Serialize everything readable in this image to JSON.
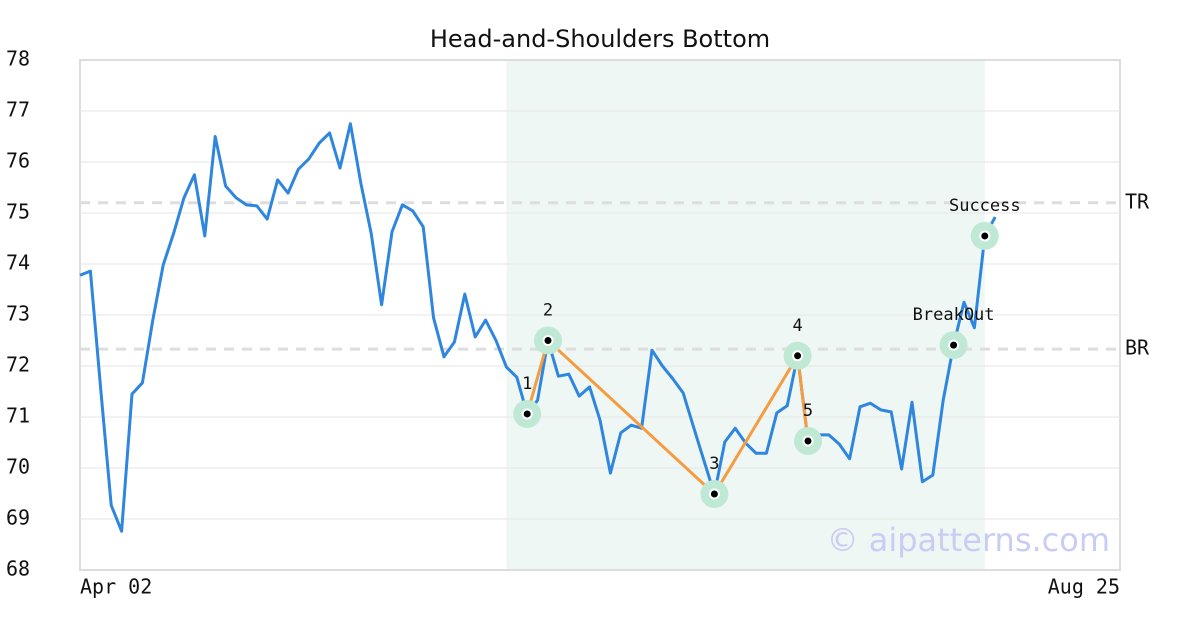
{
  "chart_data": {
    "type": "line",
    "title": "Head-and-Shoulders Bottom",
    "xlim": [
      0,
      100
    ],
    "xticks": [
      {
        "value": 0,
        "label": "Apr 02"
      },
      {
        "value": 100,
        "label": "Aug 25"
      }
    ],
    "ylim": [
      68,
      78
    ],
    "yticks": [
      68,
      69,
      70,
      71,
      72,
      73,
      74,
      75,
      76,
      77,
      78
    ],
    "grid": true,
    "highlight_range": [
      41,
      87
    ],
    "color": "#2e86de",
    "values": [
      73.78,
      73.86,
      71.53,
      69.27,
      68.76,
      71.45,
      71.67,
      72.9,
      73.98,
      74.6,
      75.3,
      75.75,
      74.55,
      76.5,
      75.53,
      75.3,
      75.16,
      75.14,
      74.88,
      75.65,
      75.39,
      75.86,
      76.06,
      76.37,
      76.57,
      75.88,
      76.75,
      75.59,
      74.6,
      73.2,
      74.63,
      75.16,
      75.04,
      74.73,
      72.94,
      72.18,
      72.47,
      73.41,
      72.57,
      72.9,
      72.5,
      71.98,
      71.78,
      71.06,
      71.33,
      72.5,
      71.8,
      71.84,
      71.41,
      71.59,
      70.94,
      69.9,
      70.69,
      70.84,
      70.78,
      72.31,
      72.0,
      71.75,
      71.47,
      70.8,
      70.14,
      69.49,
      70.51,
      70.78,
      70.49,
      70.29,
      70.29,
      71.08,
      71.22,
      72.2,
      70.53,
      70.65,
      70.65,
      70.47,
      70.18,
      71.2,
      71.27,
      71.14,
      71.1,
      69.98,
      71.29,
      69.73,
      69.86,
      71.33,
      72.41,
      73.25,
      72.75,
      74.55,
      74.92
    ],
    "pattern": {
      "color": "#f59c42",
      "labels": [
        "1",
        "2",
        "3",
        "4",
        "5"
      ],
      "x": [
        43,
        45,
        61,
        69,
        70
      ],
      "values": [
        71.06,
        72.5,
        69.49,
        72.2,
        70.53
      ]
    },
    "signals": [
      {
        "label": "BreakOut",
        "x": 84,
        "value": 72.41
      },
      {
        "label": "Success",
        "x": 87,
        "value": 74.55
      }
    ],
    "levels": [
      {
        "label": "TR",
        "value": 75.2
      },
      {
        "label": "BR",
        "value": 72.33
      }
    ],
    "watermark": "© aipatterns.com"
  }
}
